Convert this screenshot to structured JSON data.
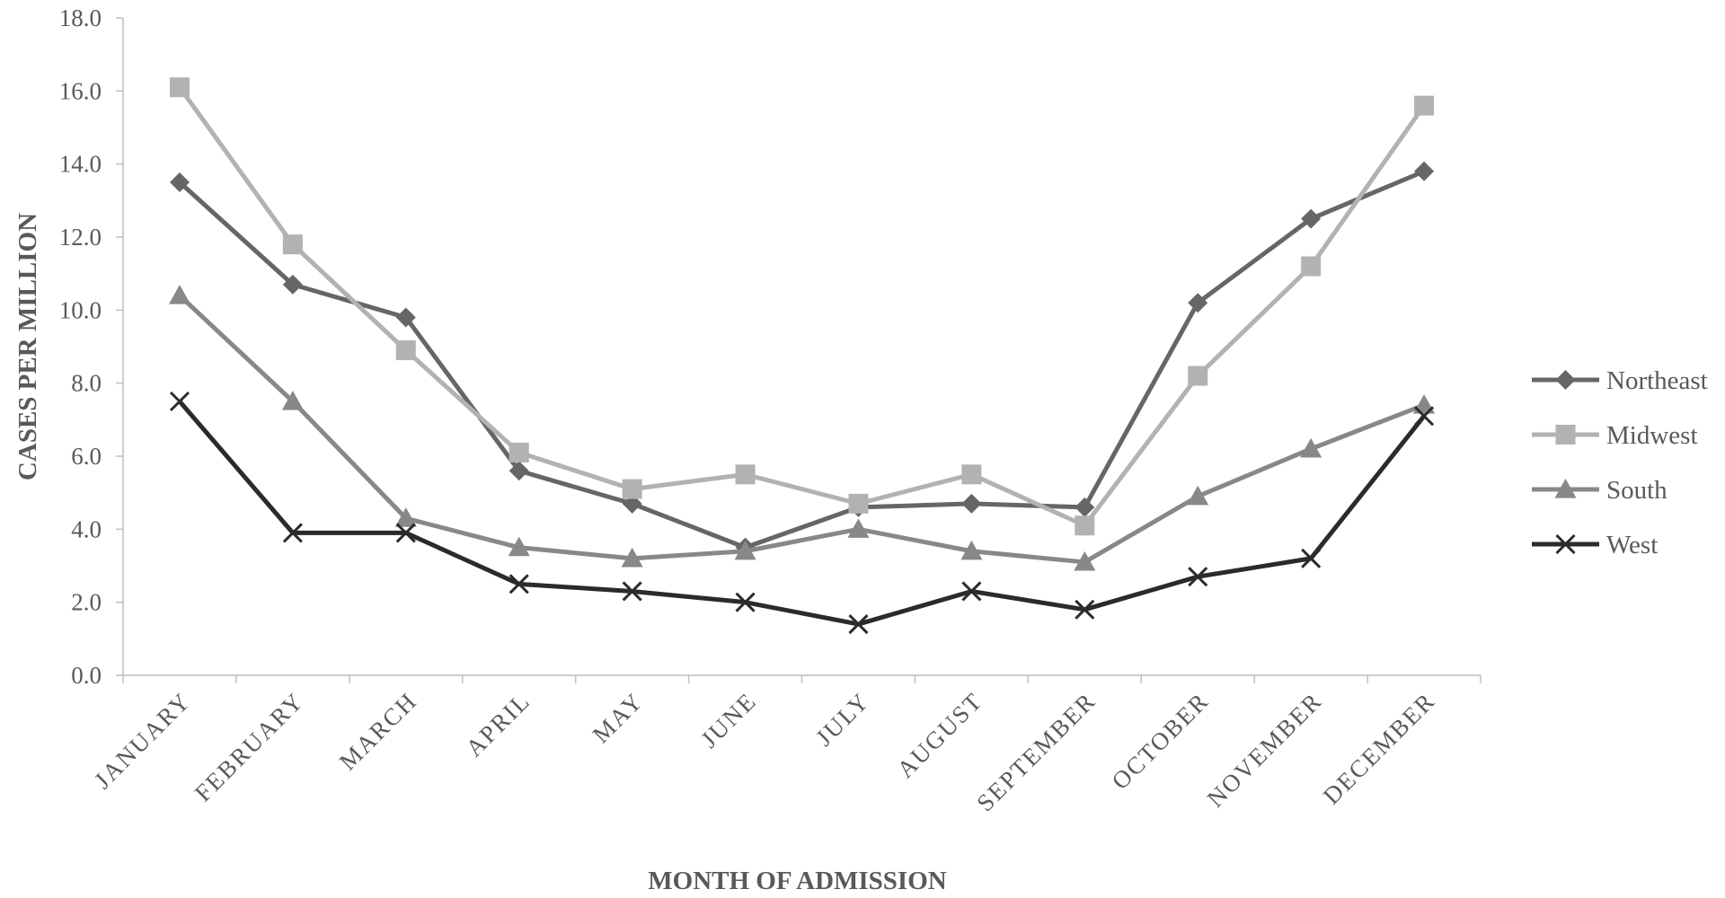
{
  "chart_data": {
    "type": "line",
    "title": "",
    "xlabel": "MONTH OF ADMISSION",
    "ylabel": "CASES PER MILLION",
    "ylim": [
      0,
      18
    ],
    "yticks": [
      "0.0",
      "2.0",
      "4.0",
      "6.0",
      "8.0",
      "10.0",
      "12.0",
      "14.0",
      "16.0",
      "18.0"
    ],
    "categories": [
      "JANUARY",
      "FEBRUARY",
      "MARCH",
      "APRIL",
      "MAY",
      "JUNE",
      "JULY",
      "AUGUST",
      "SEPTEMBER",
      "OCTOBER",
      "NOVEMBER",
      "DECEMBER"
    ],
    "grid": false,
    "legend_position": "right",
    "series": [
      {
        "name": "Northeast",
        "marker": "diamond",
        "color": "#666666",
        "values": [
          13.5,
          10.7,
          9.8,
          5.6,
          4.7,
          3.5,
          4.6,
          4.7,
          4.6,
          10.2,
          12.5,
          13.8
        ]
      },
      {
        "name": "Midwest",
        "marker": "square",
        "color": "#b2b2b2",
        "values": [
          16.1,
          11.8,
          8.9,
          6.1,
          5.1,
          5.5,
          4.7,
          5.5,
          4.1,
          8.2,
          11.2,
          15.6
        ]
      },
      {
        "name": "South",
        "marker": "triangle",
        "color": "#888888",
        "values": [
          10.4,
          7.5,
          4.3,
          3.5,
          3.2,
          3.4,
          4.0,
          3.4,
          3.1,
          4.9,
          6.2,
          7.4
        ]
      },
      {
        "name": "West",
        "marker": "x",
        "color": "#2b2b2b",
        "values": [
          7.5,
          3.9,
          3.9,
          2.5,
          2.3,
          2.0,
          1.4,
          2.3,
          1.8,
          2.7,
          3.2,
          7.1
        ]
      }
    ]
  }
}
